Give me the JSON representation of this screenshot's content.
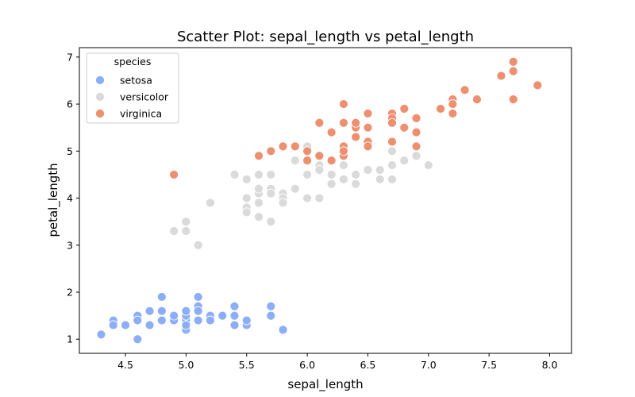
{
  "chart_data": {
    "type": "scatter",
    "title": "Scatter Plot: sepal_length vs petal_length",
    "xlabel": "sepal_length",
    "ylabel": "petal_length",
    "xlim": [
      4.12,
      8.18
    ],
    "ylim": [
      0.7,
      7.2
    ],
    "xticks": [
      "4.5",
      "5.0",
      "5.5",
      "6.0",
      "6.5",
      "7.0",
      "7.5",
      "8.0"
    ],
    "yticks": [
      "1",
      "2",
      "3",
      "4",
      "5",
      "6",
      "7"
    ],
    "grid": false,
    "legend": {
      "title": "species",
      "placement": "top-left"
    },
    "series": [
      {
        "name": "setosa",
        "color": "#8caef8",
        "points": [
          [
            5.1,
            1.4
          ],
          [
            4.9,
            1.4
          ],
          [
            4.7,
            1.3
          ],
          [
            4.6,
            1.5
          ],
          [
            5.0,
            1.4
          ],
          [
            5.4,
            1.7
          ],
          [
            4.6,
            1.4
          ],
          [
            5.0,
            1.5
          ],
          [
            4.4,
            1.4
          ],
          [
            4.9,
            1.5
          ],
          [
            5.4,
            1.5
          ],
          [
            4.8,
            1.6
          ],
          [
            4.8,
            1.4
          ],
          [
            4.3,
            1.1
          ],
          [
            5.8,
            1.2
          ],
          [
            5.7,
            1.5
          ],
          [
            5.1,
            1.7
          ],
          [
            5.7,
            1.7
          ],
          [
            4.6,
            1.0
          ],
          [
            4.8,
            1.9
          ],
          [
            5.2,
            1.5
          ],
          [
            5.2,
            1.4
          ],
          [
            4.7,
            1.6
          ],
          [
            5.5,
            1.3
          ],
          [
            5.0,
            1.2
          ],
          [
            4.4,
            1.3
          ],
          [
            4.5,
            1.3
          ],
          [
            5.0,
            1.6
          ],
          [
            5.1,
            1.9
          ],
          [
            5.3,
            1.5
          ],
          [
            5.0,
            1.3
          ],
          [
            5.4,
            1.3
          ],
          [
            5.5,
            1.4
          ],
          [
            5.1,
            1.6
          ]
        ]
      },
      {
        "name": "versicolor",
        "color": "#dadada",
        "points": [
          [
            7.0,
            4.7
          ],
          [
            6.4,
            4.5
          ],
          [
            6.9,
            4.9
          ],
          [
            5.5,
            4.0
          ],
          [
            6.5,
            4.6
          ],
          [
            5.7,
            4.5
          ],
          [
            6.3,
            4.7
          ],
          [
            4.9,
            3.3
          ],
          [
            6.6,
            4.6
          ],
          [
            5.2,
            3.9
          ],
          [
            5.0,
            3.5
          ],
          [
            5.9,
            4.2
          ],
          [
            6.0,
            4.0
          ],
          [
            6.1,
            4.7
          ],
          [
            5.6,
            3.6
          ],
          [
            6.7,
            4.4
          ],
          [
            5.6,
            4.5
          ],
          [
            5.8,
            4.1
          ],
          [
            6.2,
            4.5
          ],
          [
            5.6,
            3.9
          ],
          [
            5.9,
            4.8
          ],
          [
            6.1,
            4.0
          ],
          [
            6.3,
            4.9
          ],
          [
            6.8,
            4.8
          ],
          [
            6.7,
            5.0
          ],
          [
            6.0,
            4.5
          ],
          [
            5.7,
            3.5
          ],
          [
            5.5,
            3.8
          ],
          [
            5.5,
            3.7
          ],
          [
            5.8,
            3.9
          ],
          [
            6.0,
            5.1
          ],
          [
            5.4,
            4.5
          ],
          [
            6.7,
            4.7
          ],
          [
            5.6,
            4.1
          ],
          [
            5.5,
            4.4
          ],
          [
            6.1,
            4.6
          ],
          [
            5.8,
            4.0
          ],
          [
            5.0,
            3.3
          ],
          [
            5.7,
            4.2
          ],
          [
            6.2,
            4.3
          ],
          [
            5.1,
            3.0
          ],
          [
            5.7,
            4.1
          ],
          [
            6.0,
            4.5
          ],
          [
            6.6,
            4.4
          ],
          [
            6.3,
            4.4
          ],
          [
            5.6,
            4.2
          ],
          [
            5.7,
            3.5
          ],
          [
            5.5,
            4.0
          ],
          [
            5.8,
            3.9
          ],
          [
            6.4,
            4.3
          ]
        ]
      },
      {
        "name": "virginica",
        "color": "#ee8f70",
        "points": [
          [
            6.3,
            6.0
          ],
          [
            5.8,
            5.1
          ],
          [
            7.1,
            5.9
          ],
          [
            6.5,
            5.8
          ],
          [
            7.6,
            6.6
          ],
          [
            4.9,
            4.5
          ],
          [
            7.3,
            6.3
          ],
          [
            6.7,
            5.8
          ],
          [
            7.2,
            6.1
          ],
          [
            6.4,
            5.3
          ],
          [
            6.8,
            5.5
          ],
          [
            5.7,
            5.0
          ],
          [
            6.4,
            5.5
          ],
          [
            7.7,
            6.7
          ],
          [
            7.7,
            6.9
          ],
          [
            6.0,
            5.0
          ],
          [
            6.9,
            5.7
          ],
          [
            5.6,
            4.9
          ],
          [
            6.3,
            4.9
          ],
          [
            6.7,
            5.7
          ],
          [
            7.2,
            6.0
          ],
          [
            6.2,
            4.8
          ],
          [
            6.1,
            4.9
          ],
          [
            6.4,
            5.6
          ],
          [
            7.2,
            5.8
          ],
          [
            7.4,
            6.1
          ],
          [
            7.9,
            6.4
          ],
          [
            6.3,
            5.1
          ],
          [
            6.1,
            5.6
          ],
          [
            7.7,
            6.1
          ],
          [
            6.3,
            5.6
          ],
          [
            6.4,
            5.5
          ],
          [
            6.0,
            4.8
          ],
          [
            6.9,
            5.4
          ],
          [
            6.9,
            5.1
          ],
          [
            6.8,
            5.9
          ],
          [
            6.7,
            5.2
          ],
          [
            6.5,
            5.2
          ],
          [
            6.2,
            5.4
          ],
          [
            5.9,
            5.1
          ],
          [
            6.5,
            5.5
          ],
          [
            6.7,
            5.6
          ],
          [
            6.3,
            5.0
          ],
          [
            6.5,
            5.1
          ],
          [
            6.9,
            5.1
          ],
          [
            6.1,
            5.6
          ],
          [
            6.4,
            5.6
          ],
          [
            5.8,
            5.1
          ],
          [
            6.3,
            5.6
          ]
        ]
      }
    ]
  }
}
